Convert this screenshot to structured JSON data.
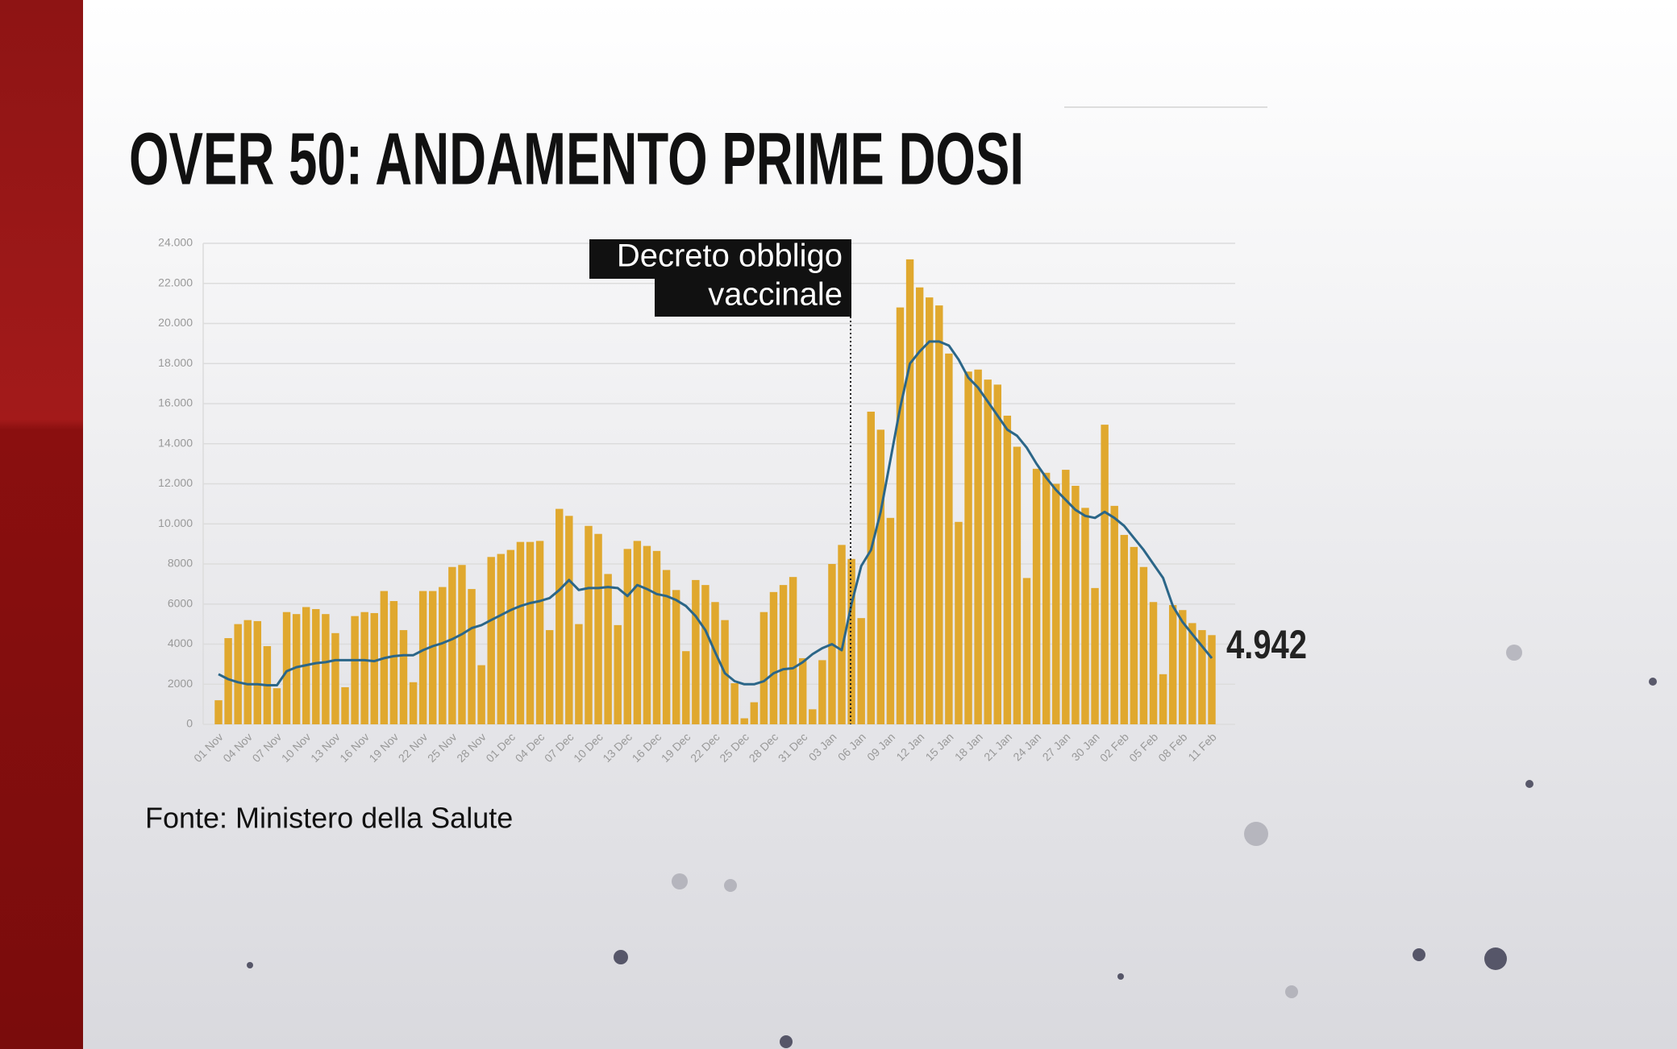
{
  "chart_data": {
    "type": "bar",
    "title": "OVER 50: ANDAMENTO PRIME DOSI",
    "source": "Fonte: Ministero della Salute",
    "annotation": "4.942",
    "event_label": [
      "Decreto obbligo",
      "vaccinale"
    ],
    "categories": [
      "01 Nov",
      null,
      null,
      "04 Nov",
      null,
      null,
      "07 Nov",
      null,
      null,
      "10 Nov",
      null,
      null,
      "13 Nov",
      null,
      null,
      "16 Nov",
      null,
      null,
      "19 Nov",
      null,
      null,
      "22 Nov",
      null,
      null,
      "25 Nov",
      null,
      null,
      "28 Nov",
      null,
      null,
      "01 Dec",
      null,
      null,
      "04 Dec",
      null,
      null,
      "07 Dec",
      null,
      null,
      "10 Dec",
      null,
      null,
      "13 Dec",
      null,
      null,
      "16 Dec",
      null,
      null,
      "19 Dec",
      null,
      null,
      "22 Dec",
      null,
      null,
      "25 Dec",
      null,
      null,
      "28 Dec",
      null,
      null,
      "31 Dec",
      null,
      null,
      "03 Jan",
      null,
      null,
      "06 Jan",
      null,
      null,
      "09 Jan",
      null,
      null,
      "12 Jan",
      null,
      null,
      "15 Jan",
      null,
      null,
      "18 Jan",
      null,
      null,
      "21 Jan",
      null,
      null,
      "24 Jan",
      null,
      null,
      "27 Jan",
      null,
      null,
      "30 Jan",
      null,
      null,
      "02 Feb",
      null,
      null,
      "05 Feb",
      null,
      null,
      "08 Feb",
      null,
      null,
      "11 Feb"
    ],
    "series": [
      {
        "type": "bar",
        "color": "#e0a82e",
        "values": [
          1200,
          4300,
          5000,
          5200,
          5150,
          3900,
          1800,
          5600,
          5500,
          5850,
          5750,
          5500,
          4550,
          1850,
          5400,
          5600,
          5550,
          6650,
          6150,
          4700,
          2100,
          6650,
          6650,
          6850,
          7850,
          7950,
          6750,
          2950,
          8350,
          8500,
          8700,
          9100,
          9100,
          9150,
          4700,
          10750,
          10400,
          5000,
          9900,
          9500,
          7500,
          4950,
          8750,
          9150,
          8900,
          8650,
          7700,
          6700,
          3650,
          7200,
          6950,
          6100,
          5200,
          2050,
          300,
          1100,
          5600,
          6600,
          6950,
          7350,
          3300,
          750,
          3200,
          8000,
          8950,
          8250,
          5300,
          15600,
          14700,
          10300,
          20800,
          23200,
          21800,
          21300,
          20900,
          18500,
          10100,
          17600,
          17700,
          17200,
          16950,
          15400,
          13850,
          7300,
          12750,
          12550,
          12000,
          12700,
          11900,
          10800,
          6800,
          14950,
          10900,
          9450,
          8850,
          7850,
          6100,
          2500,
          5950,
          5700,
          5050,
          4700,
          4450
        ]
      },
      {
        "type": "line",
        "color": "#2b6688",
        "values": [
          2500,
          2250,
          2100,
          2000,
          2000,
          1950,
          1950,
          2650,
          2850,
          2950,
          3050,
          3100,
          3200,
          3200,
          3200,
          3200,
          3150,
          3300,
          3400,
          3450,
          3450,
          3700,
          3900,
          4050,
          4250,
          4500,
          4800,
          4950,
          5200,
          5450,
          5700,
          5900,
          6050,
          6150,
          6300,
          6700,
          7200,
          6700,
          6800,
          6800,
          6850,
          6800,
          6400,
          6950,
          6750,
          6500,
          6400,
          6200,
          5900,
          5400,
          4700,
          3600,
          2550,
          2150,
          2000,
          2000,
          2150,
          2550,
          2750,
          2800,
          3100,
          3500,
          3800,
          4000,
          3700,
          6000,
          7900,
          8700,
          10600,
          13200,
          15800,
          18000,
          18600,
          19100,
          19100,
          18900,
          18200,
          17300,
          16800,
          16100,
          15400,
          14700,
          14400,
          13800,
          13000,
          12300,
          11700,
          11200,
          10700,
          10400,
          10300,
          10600,
          10300,
          9900,
          9300,
          8700,
          8000,
          7300,
          5900,
          5100,
          4500,
          3900,
          3300
        ]
      }
    ],
    "ylim": [
      0,
      24000
    ],
    "yticks": [
      0,
      2000,
      4000,
      6000,
      8000,
      {
        "value": 10000,
        "label": "10.000"
      },
      {
        "value": 12000,
        "label": "12.000"
      },
      {
        "value": 14000,
        "label": "14.000"
      },
      {
        "value": 16000,
        "label": "16.000"
      },
      {
        "value": 18000,
        "label": "18.000"
      },
      {
        "value": 20000,
        "label": "20.000"
      },
      {
        "value": 22000,
        "label": "22.000"
      },
      {
        "value": 24000,
        "label": "24.000"
      }
    ],
    "grid": true
  }
}
